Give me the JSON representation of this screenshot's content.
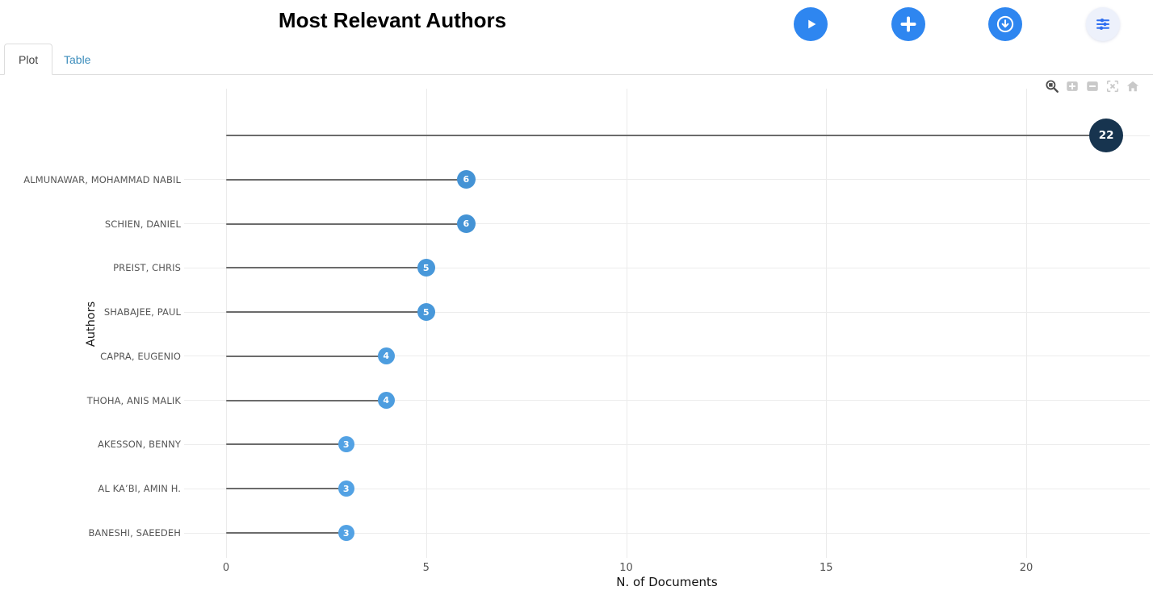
{
  "header": {
    "title": "Most Relevant Authors",
    "buttons": [
      {
        "icon": "play-icon",
        "name": "run-button"
      },
      {
        "icon": "plus-icon",
        "name": "add-button"
      },
      {
        "icon": "download-icon",
        "name": "export-button"
      },
      {
        "icon": "sliders-icon",
        "name": "options-button"
      }
    ]
  },
  "tabs": [
    {
      "label": "Plot",
      "active": true
    },
    {
      "label": "Table",
      "active": false
    }
  ],
  "modebar": {
    "icons": [
      "zoom-icon",
      "zoom-in-icon",
      "zoom-out-icon",
      "autoscale-icon",
      "reset-axes-icon"
    ]
  },
  "colors": {
    "accent_blue": "#2e86f0",
    "marker_dark": "#17344f",
    "stem_gray": "#6b6b6b",
    "grid_gray": "#ececec",
    "label_gray": "#565656",
    "tab_link_blue": "#3c8dbc"
  },
  "chart_data": {
    "type": "scatter",
    "variant": "horizontal-lollipop",
    "title": "Most Relevant Authors",
    "xlabel": "N. of Documents",
    "ylabel": "Authors",
    "xticks": [
      0,
      5,
      10,
      15,
      20
    ],
    "xlim": [
      -0.1,
      23.1
    ],
    "grid": true,
    "legend": false,
    "points": [
      {
        "label": "",
        "value": 22,
        "color": "#17344f",
        "size": 42
      },
      {
        "label": "ALMUNAWAR, MOHAMMAD NABIL",
        "value": 6,
        "color": "#4493d5",
        "size": 23
      },
      {
        "label": "SCHIEN, DANIEL",
        "value": 6,
        "color": "#4493d5",
        "size": 23
      },
      {
        "label": "PREIST, CHRIS",
        "value": 5,
        "color": "#4898da",
        "size": 22
      },
      {
        "label": "SHABAJEE, PAUL",
        "value": 5,
        "color": "#4898da",
        "size": 22
      },
      {
        "label": "CAPRA, EUGENIO",
        "value": 4,
        "color": "#4d9ddf",
        "size": 21
      },
      {
        "label": "THOHA, ANIS MALIK",
        "value": 4,
        "color": "#4d9ddf",
        "size": 21
      },
      {
        "label": "AKESSON, BENNY",
        "value": 3,
        "color": "#53a2e4",
        "size": 20
      },
      {
        "label": "AL KA’BI, AMIN H.",
        "value": 3,
        "color": "#53a2e4",
        "size": 20
      },
      {
        "label": "BANESHI, SAEEDEH",
        "value": 3,
        "color": "#53a2e4",
        "size": 20
      }
    ]
  }
}
